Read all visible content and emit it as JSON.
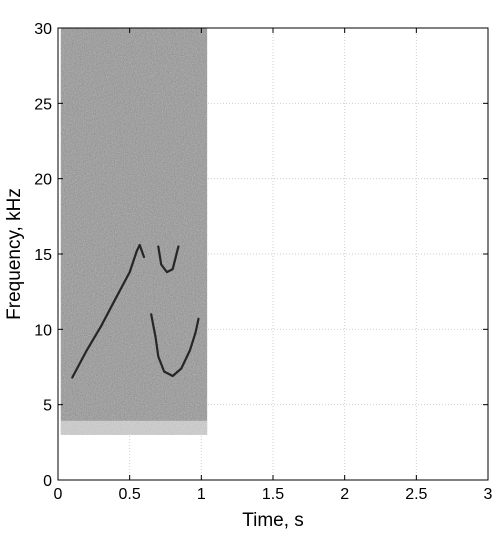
{
  "chart_data": {
    "type": "heatmap",
    "title": "",
    "xlabel": "Time, s",
    "ylabel": "Frequency, kHz",
    "xlim": [
      0,
      3
    ],
    "ylim": [
      0,
      30
    ],
    "x_ticks": [
      0,
      0.5,
      1,
      1.5,
      2,
      2.5,
      3
    ],
    "y_ticks": [
      0,
      5,
      10,
      15,
      20,
      25,
      30
    ],
    "x_tick_labels": [
      "0",
      "0.5",
      "1",
      "1.5",
      "2",
      "2.5",
      "3"
    ],
    "y_tick_labels": [
      "0",
      "5",
      "10",
      "15",
      "20",
      "25",
      "30"
    ],
    "grid": true,
    "colormap": "gray (darker = higher energy)",
    "noise_region": {
      "time_range": [
        0.02,
        1.04
      ],
      "freq_range": [
        3.0,
        30
      ],
      "shade": "#9a9a9a"
    },
    "traces": [
      {
        "name": "",
        "points": [
          [
            0.1,
            6.8
          ],
          [
            0.2,
            8.6
          ],
          [
            0.3,
            10.2
          ],
          [
            0.4,
            12.0
          ],
          [
            0.5,
            13.8
          ],
          [
            0.55,
            15.2
          ],
          [
            0.57,
            15.6
          ],
          [
            0.6,
            14.8
          ]
        ]
      },
      {
        "name": "",
        "points": [
          [
            0.65,
            11.0
          ],
          [
            0.68,
            9.5
          ],
          [
            0.7,
            8.2
          ],
          [
            0.74,
            7.2
          ],
          [
            0.8,
            6.9
          ],
          [
            0.86,
            7.4
          ],
          [
            0.92,
            8.6
          ],
          [
            0.96,
            9.8
          ],
          [
            0.98,
            10.7
          ]
        ]
      },
      {
        "name": "",
        "points": [
          [
            0.7,
            15.5
          ],
          [
            0.72,
            14.3
          ],
          [
            0.76,
            13.8
          ],
          [
            0.8,
            14.0
          ],
          [
            0.84,
            15.5
          ]
        ]
      }
    ]
  }
}
